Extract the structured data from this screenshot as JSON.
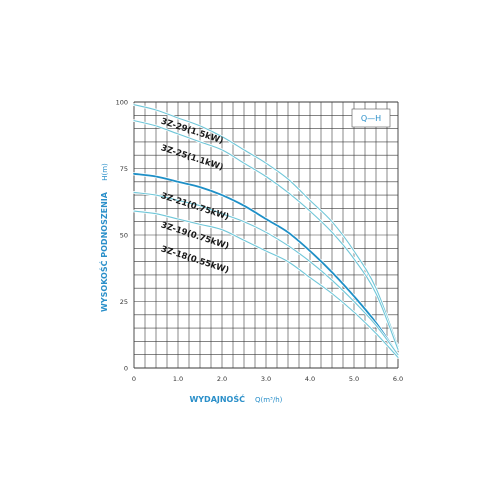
{
  "chart_data": {
    "type": "line",
    "title": "",
    "legend_label": "Q—H",
    "legend_placement": "top-right",
    "xlabel": "WYDAJNOŚĆ",
    "xunit": "Q(m³/h)",
    "ylabel": "WYSOKOŚĆ PODNOSZENIA",
    "yunit": "H(m)",
    "xlim": [
      0,
      6.0
    ],
    "ylim": [
      0,
      100
    ],
    "xticks": [
      "0",
      "1.0",
      "2.0",
      "3.0",
      "4.0",
      "5.0",
      "6.0"
    ],
    "yticks": [
      "0",
      "25",
      "50",
      "75",
      "100"
    ],
    "grid": true,
    "series": [
      {
        "name": "3Z-29(1.5kW)",
        "color": "#6fc6d8",
        "label_x": 0.6,
        "label_y": 92,
        "x": [
          0,
          0.5,
          1.0,
          1.5,
          2.0,
          2.5,
          3.0,
          3.5,
          4.0,
          4.5,
          5.0,
          5.5,
          6.0
        ],
        "y": [
          99,
          97,
          94,
          91,
          87,
          82,
          77,
          71,
          63,
          55,
          44,
          30,
          8
        ]
      },
      {
        "name": "3Z-25(1.1kW)",
        "color": "#6fc6d8",
        "label_x": 0.6,
        "label_y": 82,
        "x": [
          0,
          0.5,
          1.0,
          1.5,
          2.0,
          2.5,
          3.0,
          3.5,
          4.0,
          4.5,
          5.0,
          5.5,
          6.0
        ],
        "y": [
          93,
          91,
          88,
          85,
          82,
          77,
          72,
          66,
          59,
          51,
          41,
          28,
          7
        ]
      },
      {
        "name": "3Z-21(0.75kW)",
        "color": "#1e8fc6",
        "label_x": 0.6,
        "label_y": 64,
        "x": [
          0,
          0.5,
          1.0,
          1.5,
          2.0,
          2.5,
          3.0,
          3.5,
          4.0,
          4.5,
          5.0,
          5.5,
          6.0
        ],
        "y": [
          73,
          72,
          70,
          68,
          65,
          61,
          56,
          51,
          44,
          36,
          27,
          17,
          5
        ]
      },
      {
        "name": "3Z-19(0.75kW)",
        "color": "#6fc6d8",
        "label_x": 0.6,
        "label_y": 53,
        "x": [
          0,
          0.5,
          1.0,
          1.5,
          2.0,
          2.5,
          3.0,
          3.5,
          4.0,
          4.5,
          5.0,
          5.5,
          6.0
        ],
        "y": [
          66,
          65,
          63,
          61,
          58,
          55,
          51,
          46,
          40,
          33,
          25,
          16,
          5
        ]
      },
      {
        "name": "3Z-18(0.55kW)",
        "color": "#6fc6d8",
        "label_x": 0.6,
        "label_y": 44,
        "x": [
          0,
          0.5,
          1.0,
          1.5,
          2.0,
          2.5,
          3.0,
          3.5,
          4.0,
          4.5,
          5.0,
          5.5,
          6.0
        ],
        "y": [
          59,
          58,
          56,
          54,
          52,
          48,
          44,
          40,
          34,
          28,
          21,
          13,
          4
        ]
      }
    ]
  }
}
